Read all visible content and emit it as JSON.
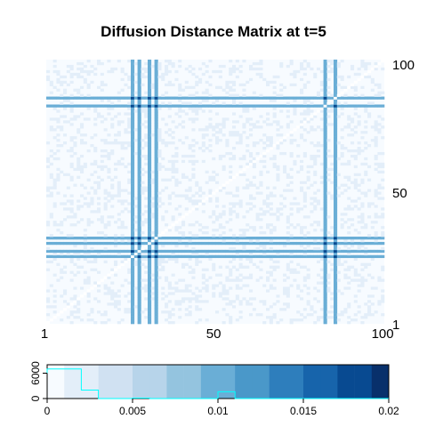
{
  "chart_data": {
    "type": "heatmap",
    "title": "Diffusion Distance Matrix at t=5",
    "n": 100,
    "x_ticks": [
      "1",
      "50",
      "100"
    ],
    "y_ticks": [
      "100",
      "50",
      "1"
    ],
    "highlight_indices": [
      25,
      30,
      85,
      27,
      32,
      82
    ],
    "colorscale": [
      "#f7fbff",
      "#e3eef9",
      "#d0e1f2",
      "#b7d4ea",
      "#94c4df",
      "#6aaed6",
      "#4a98c9",
      "#2e7ebc",
      "#1764ab",
      "#084a91",
      "#08306b"
    ],
    "colorkey": {
      "range": [
        0,
        0.02
      ],
      "ticks": [
        "0",
        "0.005",
        "0.01",
        "0.015",
        "0.02"
      ],
      "y_ticks": [
        "0",
        "6000"
      ],
      "histogram_color": "#00ffff"
    }
  }
}
